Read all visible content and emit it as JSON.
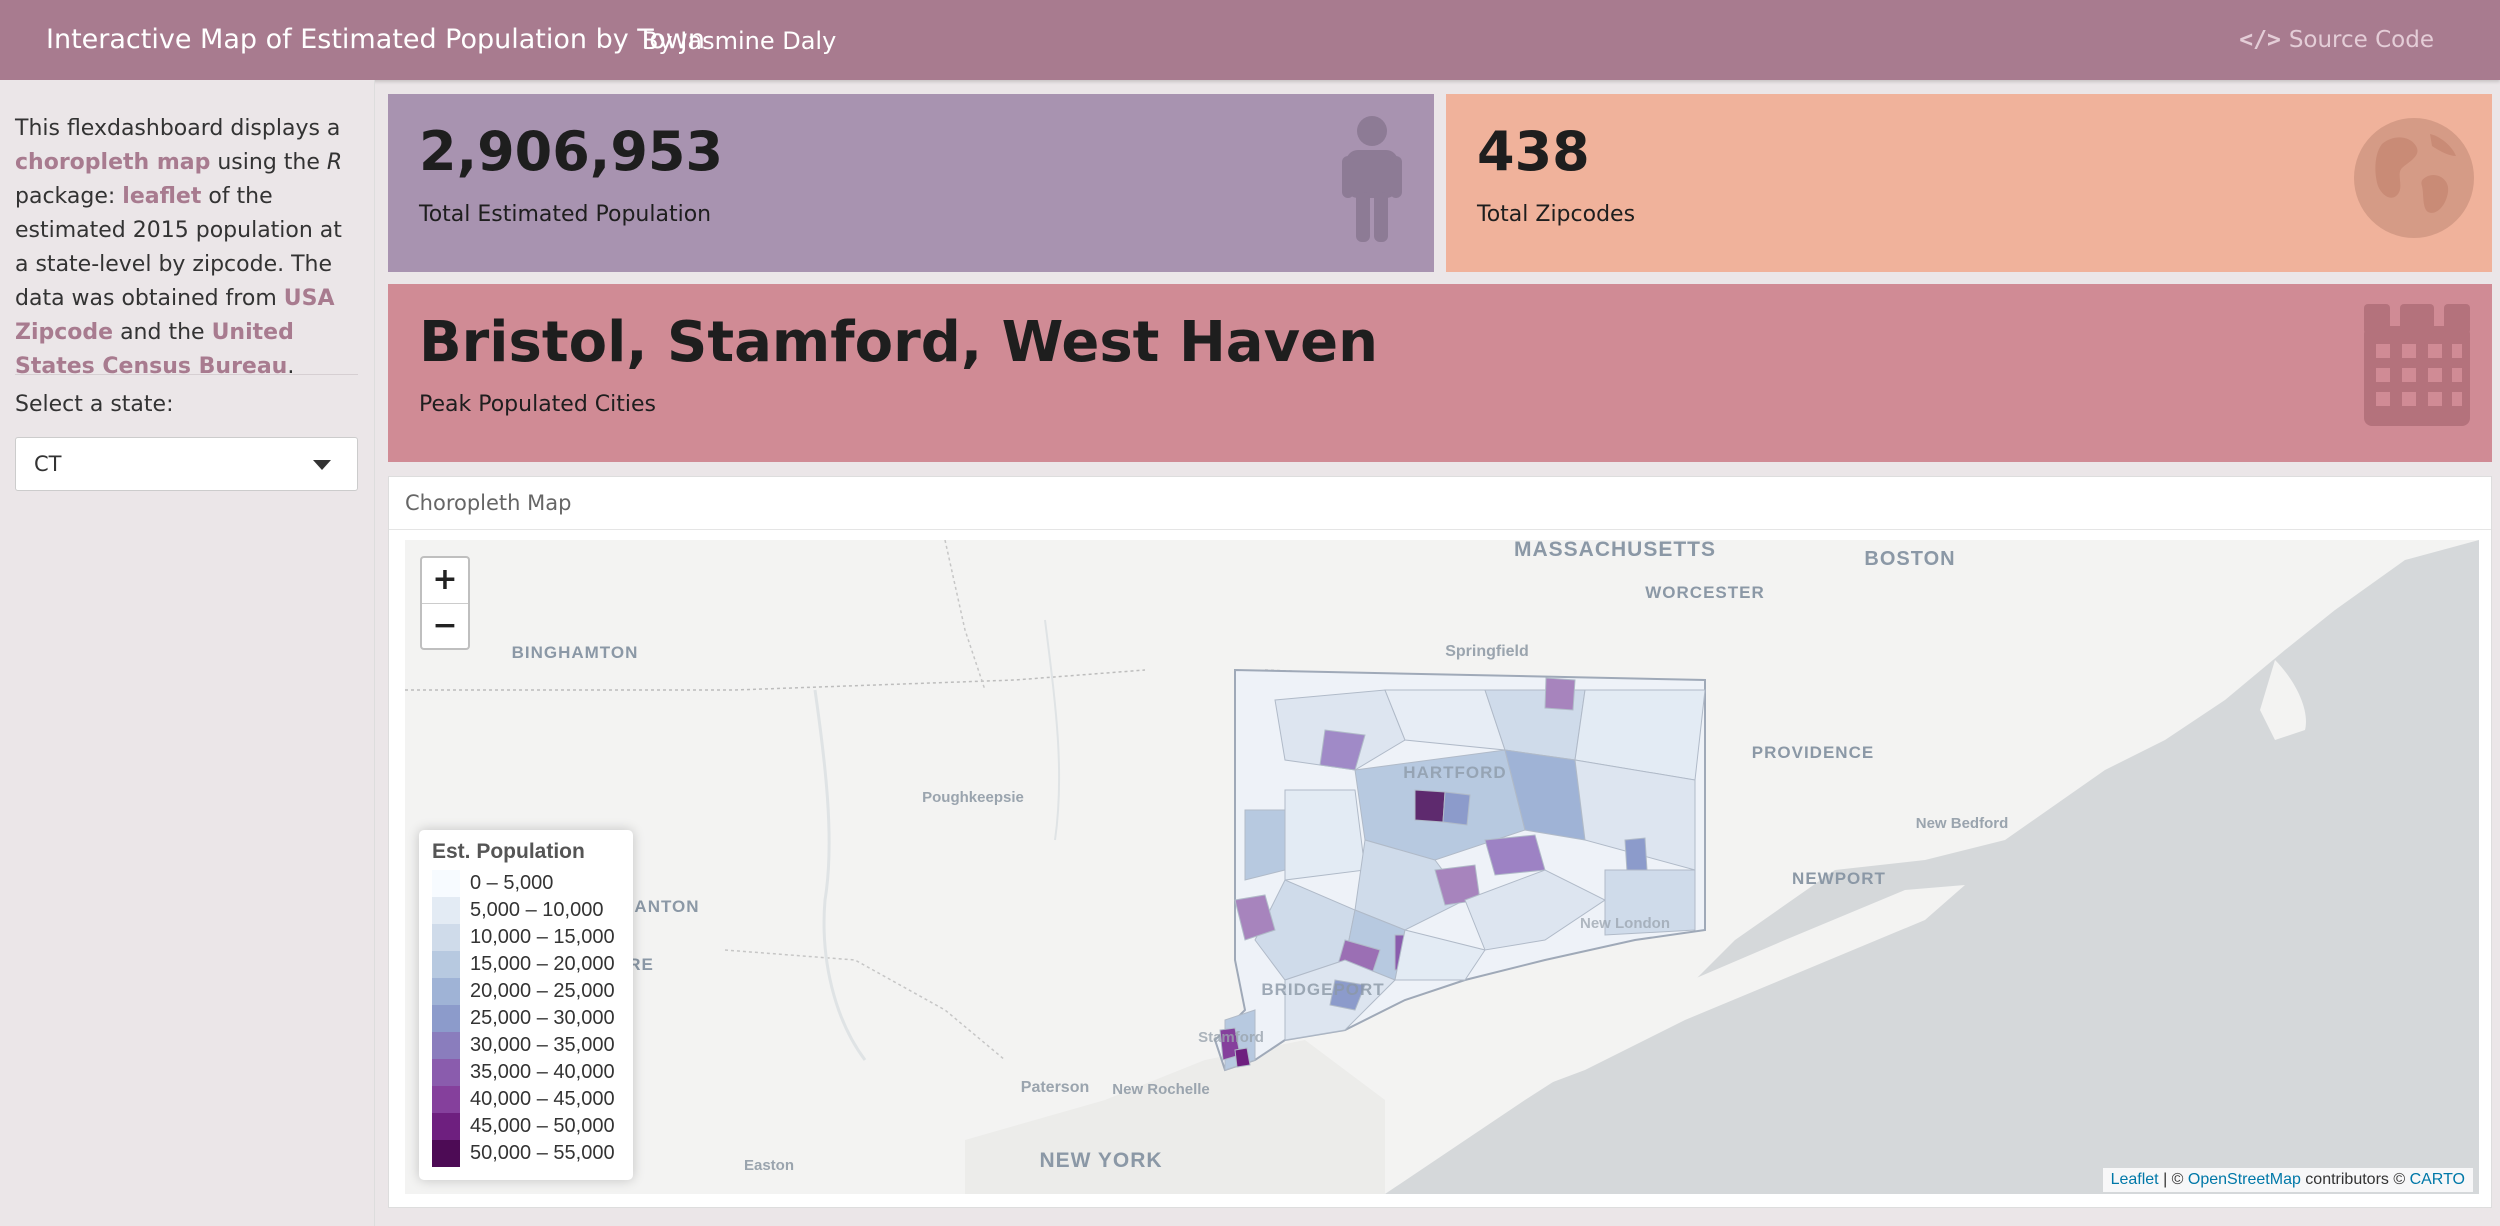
{
  "navbar": {
    "title": "Interactive Map of Estimated Population by Town",
    "author": "By Jasmine Daly",
    "source_label": "Source Code",
    "source_icon": "code-icon"
  },
  "sidebar": {
    "desc": {
      "p1": "This flexdashboard displays a ",
      "link1": "choropleth map",
      "p2": " using the ",
      "r": "R",
      "p3": " package: ",
      "link2": "leaflet",
      "p4": " of the estimated 2015 population at a state-level by zipcode. The data was obtained from ",
      "link3": "USA Zipcode",
      "p5": " and the ",
      "link4": "United States Census Bureau",
      "p6": "."
    },
    "select_label": "Select a state:",
    "select_value": "CT"
  },
  "valueboxes": [
    {
      "value": "2,906,953",
      "caption": "Total Estimated Population",
      "icon": "person-icon",
      "color": "#a893b0"
    },
    {
      "value": "438",
      "caption": "Total Zipcodes",
      "icon": "globe-icon",
      "color": "#f0b29b"
    },
    {
      "value": "Bristol, Stamford, West Haven",
      "caption": "Peak Populated Cities",
      "icon": "building-icon",
      "color": "#d08b95"
    }
  ],
  "map_card": {
    "title": "Choropleth Map",
    "zoom_in": "+",
    "zoom_out": "−",
    "legend": {
      "title": "Est. Population",
      "items": [
        {
          "label": "0 – 5,000",
          "color": "#f7fbff"
        },
        {
          "label": "5,000 – 10,000",
          "color": "#e3ebf4"
        },
        {
          "label": "10,000 – 15,000",
          "color": "#cfdbea"
        },
        {
          "label": "15,000 – 20,000",
          "color": "#b7c9e0"
        },
        {
          "label": "20,000 – 25,000",
          "color": "#9fb3d6"
        },
        {
          "label": "25,000 – 30,000",
          "color": "#8c9bcb"
        },
        {
          "label": "30,000 – 35,000",
          "color": "#8a7dbd"
        },
        {
          "label": "35,000 – 40,000",
          "color": "#8a5cad"
        },
        {
          "label": "40,000 – 45,000",
          "color": "#85409c"
        },
        {
          "label": "45,000 – 50,000",
          "color": "#6e1f7f"
        },
        {
          "label": "50,000 – 55,000",
          "color": "#4d0b55"
        }
      ]
    },
    "places": {
      "massachusetts": "MASSACHUSETTS",
      "boston": "BOSTON",
      "worcester": "WORCESTER",
      "binghamton": "BINGHAMTON",
      "springfield": "Springfield",
      "providence": "PROVIDENCE",
      "poughkeepsie": "Poughkeepsie",
      "hartford": "HARTFORD",
      "new_bedford": "New Bedford",
      "newport": "NEWPORT",
      "anton": "ANTON",
      "re": "RE",
      "new_london": "New London",
      "bridgeport": "BRIDGEPORT",
      "stamford": "Stamford",
      "paterson": "Paterson",
      "new_rochelle": "New Rochelle",
      "new_york": "NEW YORK",
      "easton": "Easton"
    },
    "attribution": {
      "leaflet": "Leaflet",
      "sep": " | © ",
      "osm": "OpenStreetMap",
      "contrib": " contributors © ",
      "carto": "CARTO"
    }
  }
}
